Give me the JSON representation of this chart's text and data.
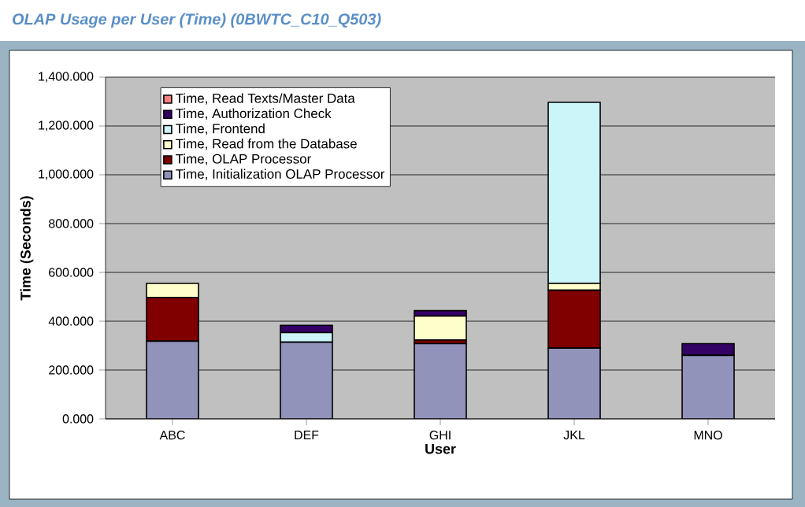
{
  "chart_data": {
    "type": "bar",
    "stacked": true,
    "title": "OLAP Usage per User (Time) (0BWTC_C10_Q503)",
    "xlabel": "User",
    "ylabel": "Time (Seconds)",
    "categories": [
      "ABC",
      "DEF",
      "GHI",
      "JKL",
      "MNO"
    ],
    "series": [
      {
        "name": "Time, Initialization OLAP Processor",
        "color": "#9193bb",
        "values": [
          318,
          314,
          308,
          290,
          260
        ]
      },
      {
        "name": "Time, OLAP Processor",
        "color": "#800000",
        "values": [
          179,
          null,
          15,
          237,
          null
        ]
      },
      {
        "name": "Time, Read from the Database",
        "color": "#ffffcc",
        "values": [
          58,
          null,
          98,
          28,
          null
        ]
      },
      {
        "name": "Time, Frontend",
        "color": "#ccf5fa",
        "values": [
          null,
          39,
          null,
          742,
          null
        ]
      },
      {
        "name": "Time, Authorization Check",
        "color": "#330066",
        "values": [
          null,
          30,
          22,
          null,
          48
        ]
      },
      {
        "name": "Time, Read Texts/Master Data",
        "color": "#ff8080",
        "values": [
          null,
          null,
          null,
          null,
          null
        ]
      }
    ],
    "ylim": [
      0,
      1400
    ],
    "yticks": [
      {
        "value": 0,
        "label": "0.000"
      },
      {
        "value": 200,
        "label": "200.000"
      },
      {
        "value": 400,
        "label": "400.000"
      },
      {
        "value": 600,
        "label": "600.000"
      },
      {
        "value": 800,
        "label": "800.000"
      },
      {
        "value": 1000,
        "label": "1,000.000"
      },
      {
        "value": 1200,
        "label": "1,200.000"
      },
      {
        "value": 1400,
        "label": "1,400.000"
      }
    ],
    "grid": "y",
    "legend": "top left"
  }
}
